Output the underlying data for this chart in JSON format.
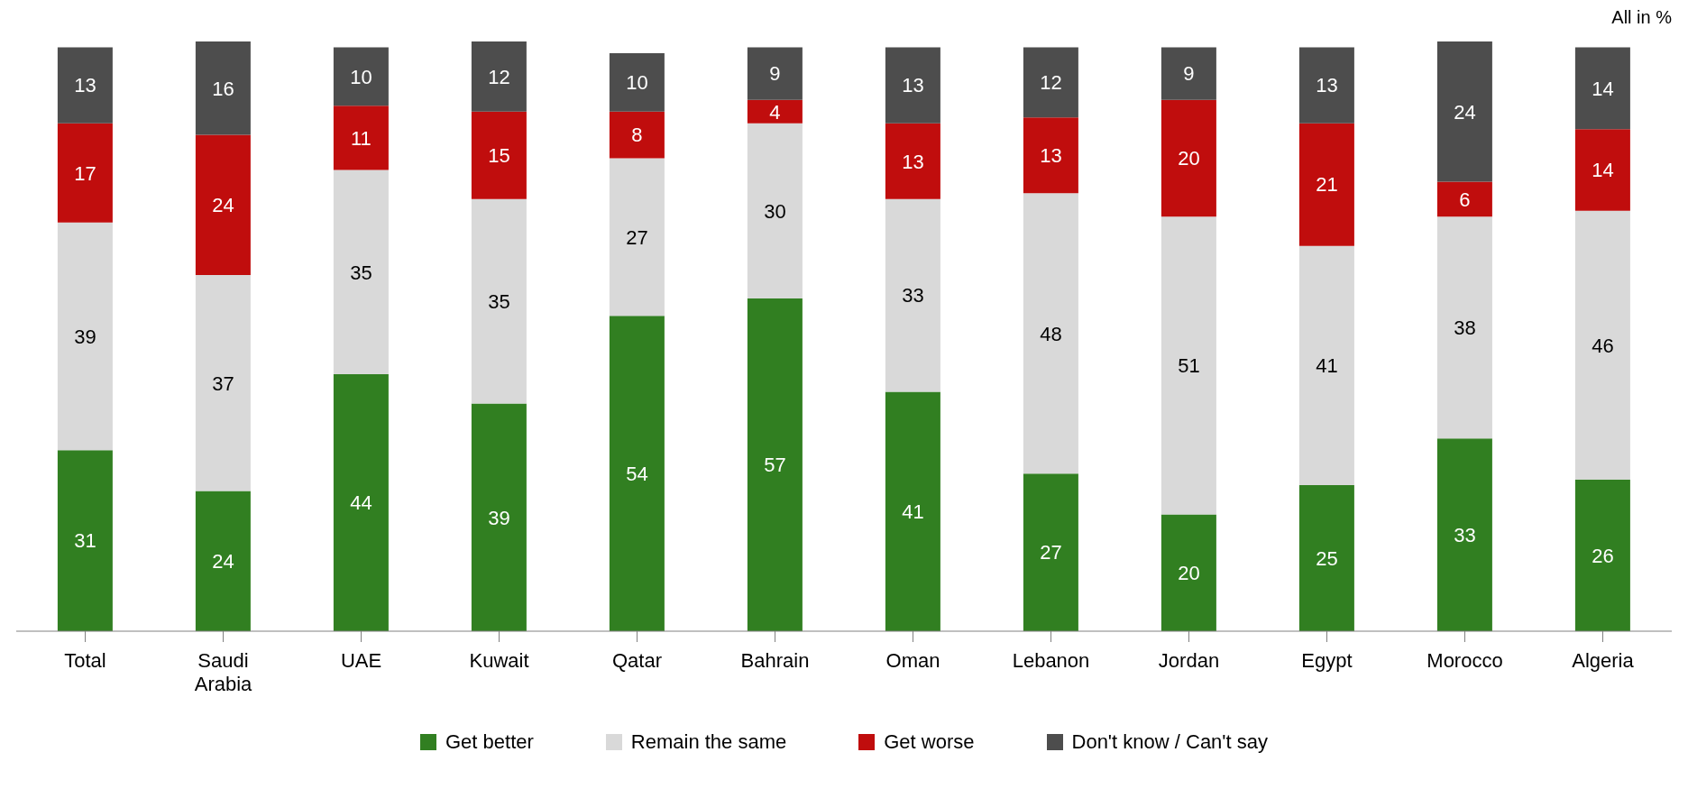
{
  "chart_data": {
    "type": "bar",
    "stacked": true,
    "data_labels": true,
    "legend": "bottom",
    "annotations": [
      "All in %"
    ],
    "categories": [
      "Total",
      "Saudi Arabia",
      "UAE",
      "Kuwait",
      "Qatar",
      "Bahrain",
      "Oman",
      "Lebanon",
      "Jordan",
      "Egypt",
      "Morocco",
      "Algeria"
    ],
    "series": [
      {
        "name": "Get better",
        "color": "#317f21",
        "values": [
          31,
          24,
          44,
          39,
          54,
          57,
          41,
          27,
          20,
          25,
          33,
          26
        ]
      },
      {
        "name": "Remain the same",
        "color": "#d9d9d9",
        "values": [
          39,
          37,
          35,
          35,
          27,
          30,
          33,
          48,
          51,
          41,
          38,
          46
        ]
      },
      {
        "name": "Get worse",
        "color": "#c00d0d",
        "values": [
          17,
          24,
          11,
          15,
          8,
          4,
          13,
          13,
          20,
          21,
          6,
          14
        ]
      },
      {
        "name": "Don't know / Can't say",
        "color": "#4d4d4d",
        "values": [
          13,
          16,
          10,
          12,
          10,
          9,
          13,
          12,
          9,
          13,
          24,
          14
        ]
      }
    ]
  }
}
